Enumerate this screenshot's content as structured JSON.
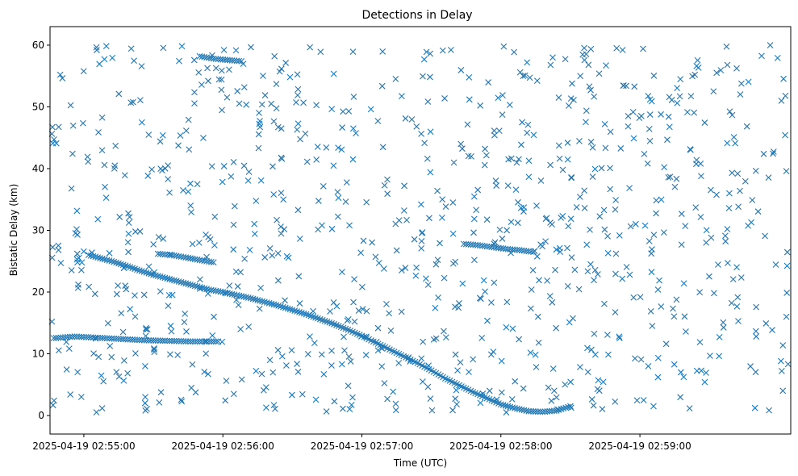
{
  "chart_data": {
    "type": "scatter",
    "title": "Detections in Delay",
    "xlabel": "Time (UTC)",
    "ylabel": "Bistatic Delay (km)",
    "marker": "x",
    "marker_color": "#1f77b4",
    "x_unit": "seconds after 2025-04-19 02:54:00 UTC",
    "xlim": [
      45.4,
      365.1
    ],
    "ylim": [
      -3.0,
      63.0
    ],
    "x_ticks": [
      {
        "value": 60,
        "label": "2025-04-19 02:55:00"
      },
      {
        "value": 120,
        "label": "2025-04-19 02:56:00"
      },
      {
        "value": 180,
        "label": "2025-04-19 02:57:00"
      },
      {
        "value": 240,
        "label": "2025-04-19 02:58:00"
      },
      {
        "value": 300,
        "label": "2025-04-19 02:59:00"
      }
    ],
    "y_ticks": [
      0,
      10,
      20,
      30,
      40,
      50,
      60
    ],
    "tracks": [
      {
        "name": "main-target-track",
        "points": [
          [
            62,
            26
          ],
          [
            66,
            25.6
          ],
          [
            72,
            25
          ],
          [
            78,
            24.3
          ],
          [
            84,
            23.5
          ],
          [
            90,
            22.8
          ],
          [
            96,
            22.2
          ],
          [
            102,
            21.6
          ],
          [
            108,
            21
          ],
          [
            114,
            20.4
          ],
          [
            120,
            20
          ],
          [
            126,
            19.5
          ],
          [
            132,
            19
          ],
          [
            138,
            18.4
          ],
          [
            144,
            17.8
          ],
          [
            150,
            17.1
          ],
          [
            156,
            16.4
          ],
          [
            162,
            15.6
          ],
          [
            168,
            14.8
          ],
          [
            174,
            13.9
          ],
          [
            180,
            12.9
          ],
          [
            186,
            11.8
          ],
          [
            192,
            10.7
          ],
          [
            198,
            9.6
          ],
          [
            204,
            8.5
          ],
          [
            210,
            7.3
          ],
          [
            216,
            6.0
          ],
          [
            222,
            4.9
          ],
          [
            228,
            3.8
          ],
          [
            234,
            2.8
          ],
          [
            240,
            1.8
          ],
          [
            246,
            1.2
          ],
          [
            252,
            0.7
          ],
          [
            258,
            0.6
          ],
          [
            264,
            0.8
          ],
          [
            270,
            1.5
          ]
        ]
      },
      {
        "name": "secondary-track-low",
        "points": [
          [
            46,
            12.5
          ],
          [
            56,
            12.8
          ],
          [
            66,
            12.6
          ],
          [
            76,
            12.4
          ],
          [
            86,
            12.2
          ],
          [
            96,
            12.1
          ],
          [
            106,
            12.0
          ],
          [
            118,
            12.0
          ]
        ]
      },
      {
        "name": "secondary-track-mid",
        "points": [
          [
            92,
            26.2
          ],
          [
            98,
            26.0
          ],
          [
            104,
            25.6
          ],
          [
            110,
            25.2
          ],
          [
            116,
            24.8
          ]
        ]
      },
      {
        "name": "secondary-track-high",
        "points": [
          [
            110,
            58.2
          ],
          [
            116,
            57.8
          ],
          [
            122,
            57.6
          ],
          [
            128,
            57.4
          ]
        ]
      },
      {
        "name": "secondary-track-right",
        "points": [
          [
            224,
            27.8
          ],
          [
            230,
            27.6
          ],
          [
            236,
            27.3
          ],
          [
            242,
            27.0
          ],
          [
            248,
            26.8
          ],
          [
            254,
            26.5
          ]
        ]
      }
    ],
    "clutter": {
      "count": 900,
      "x_range": [
        46,
        364
      ],
      "y_range": [
        0.5,
        60
      ],
      "seed": 7
    }
  }
}
